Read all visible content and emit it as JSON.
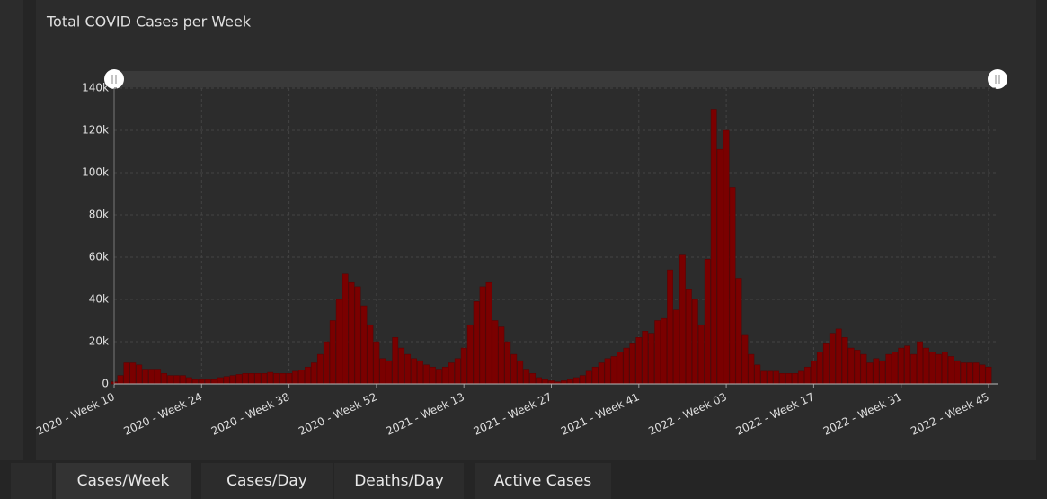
{
  "chart_data": {
    "type": "bar",
    "title": "Total COVID Cases per Week",
    "color": "#7a0000",
    "grid": true,
    "categories": [
      "2020 - Week 10",
      null,
      null,
      null,
      null,
      null,
      null,
      null,
      null,
      null,
      null,
      null,
      null,
      null,
      "2020 - Week 24",
      null,
      null,
      null,
      null,
      null,
      null,
      null,
      null,
      null,
      null,
      null,
      null,
      null,
      "2020 - Week 38",
      null,
      null,
      null,
      null,
      null,
      null,
      null,
      null,
      null,
      null,
      null,
      null,
      null,
      "2020 - Week 52",
      null,
      null,
      null,
      null,
      null,
      null,
      null,
      null,
      null,
      null,
      null,
      null,
      null,
      "2021 - Week 13",
      null,
      null,
      null,
      null,
      null,
      null,
      null,
      null,
      null,
      null,
      null,
      null,
      null,
      "2021 - Week 27",
      null,
      null,
      null,
      null,
      null,
      null,
      null,
      null,
      null,
      null,
      null,
      null,
      null,
      "2021 - Week 41",
      null,
      null,
      null,
      null,
      null,
      null,
      null,
      null,
      null,
      null,
      null,
      null,
      null,
      "2022 - Week 03",
      null,
      null,
      null,
      null,
      null,
      null,
      null,
      null,
      null,
      null,
      null,
      null,
      null,
      "2022 - Week 17",
      null,
      null,
      null,
      null,
      null,
      null,
      null,
      null,
      null,
      null,
      null,
      null,
      null,
      "2022 - Week 31",
      null,
      null,
      null,
      null,
      null,
      null,
      null,
      null,
      null,
      null,
      null,
      null,
      null,
      "2022 - Week 45"
    ],
    "values": [
      1000,
      4000,
      10000,
      10000,
      9000,
      7000,
      7000,
      7000,
      5000,
      4000,
      4000,
      4000,
      3000,
      2000,
      2000,
      2000,
      2000,
      3000,
      3500,
      4000,
      4500,
      5000,
      5000,
      5000,
      5000,
      5500,
      5000,
      5000,
      5000,
      6000,
      6500,
      8000,
      10000,
      14000,
      20000,
      30000,
      40000,
      52000,
      48000,
      46000,
      37000,
      28000,
      20000,
      12000,
      11000,
      22000,
      17000,
      14000,
      12000,
      11000,
      9000,
      8000,
      7000,
      8000,
      10000,
      12000,
      17000,
      28000,
      39000,
      46000,
      48000,
      30000,
      27000,
      20000,
      14000,
      11000,
      7000,
      5000,
      3000,
      2000,
      1500,
      1000,
      1500,
      2000,
      3000,
      4000,
      6000,
      8000,
      10000,
      12000,
      13000,
      15000,
      17000,
      19000,
      22000,
      25000,
      24000,
      30000,
      31000,
      54000,
      35000,
      61000,
      45000,
      40000,
      28000,
      59000,
      130000,
      111000,
      120000,
      93000,
      50000,
      23000,
      14000,
      9000,
      6000,
      6000,
      6000,
      5000,
      5000,
      5000,
      6000,
      8000,
      11000,
      15000,
      19000,
      24000,
      26000,
      22000,
      17000,
      16000,
      14000,
      10000,
      12000,
      11000,
      14000,
      15000,
      17000,
      18000,
      14000,
      20000,
      17000,
      15000,
      14000,
      15000,
      13000,
      11000,
      10000,
      10000,
      10000,
      9000,
      8000
    ],
    "ylim": [
      0,
      140000
    ],
    "yticks": [
      0,
      {
        "value": 20000,
        "label": "20k"
      },
      {
        "value": 40000,
        "label": "40k"
      },
      {
        "value": 60000,
        "label": "60k"
      },
      {
        "value": 80000,
        "label": "80k"
      },
      {
        "value": 100000,
        "label": "100k"
      },
      {
        "value": 120000,
        "label": "120k"
      },
      {
        "value": 140000,
        "label": "140k"
      }
    ]
  },
  "tabs": [
    "Cases/Week",
    "Cases/Day",
    "Deaths/Day",
    "Active Cases"
  ]
}
